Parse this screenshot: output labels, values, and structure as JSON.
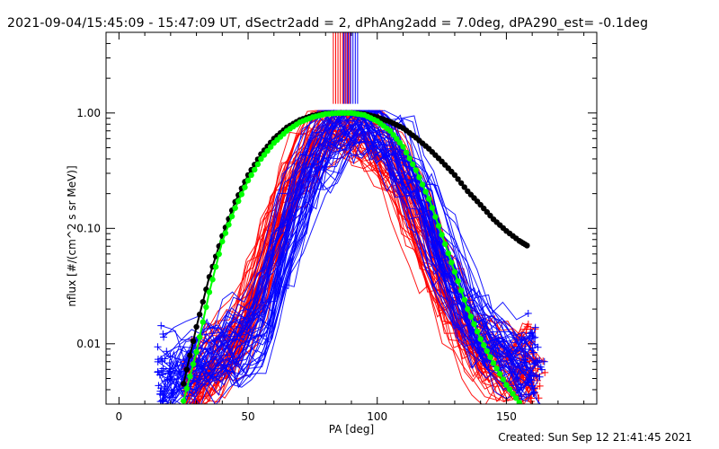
{
  "title": "2021-09-04/15:45:09 - 15:47:09 UT, dSectr2add = 2, dPhAng2add = 7.0deg, dPA290_est= -0.1deg",
  "footer": "Created: Sun Sep 12 21:41:45 2021",
  "chart_data": {
    "type": "line",
    "title": "2021-09-04/15:45:09 - 15:47:09 UT, dSectr2add = 2, dPhAng2add = 7.0deg, dPA290_est= -0.1deg",
    "xlabel": "PA [deg]",
    "ylabel": "nflux [#/(cm^2 s sr MeV)]",
    "xlim": [
      -5,
      185
    ],
    "ylim": [
      0.003,
      5
    ],
    "yscale": "log",
    "x_ticks": [
      0,
      50,
      100,
      150
    ],
    "x_tick_labels": [
      "0",
      "50",
      "100",
      "150"
    ],
    "y_ticks": [
      0.01,
      0.1,
      1.0
    ],
    "y_tick_labels": [
      "0.01",
      "0.10",
      "1.00"
    ],
    "grid": false,
    "colors": {
      "red": "#ff0000",
      "blue": "#0000ff",
      "green": "#00ff00",
      "black": "#000000"
    },
    "series": [
      {
        "color": "#000000",
        "style": "dots",
        "x": [
          25,
          30,
          35,
          40,
          45,
          50,
          55,
          60,
          65,
          70,
          75,
          80,
          85,
          90,
          95,
          100,
          105,
          110,
          115,
          120,
          125,
          130,
          135,
          140,
          145,
          150,
          155,
          158
        ],
        "values": [
          0.0045,
          0.014,
          0.038,
          0.086,
          0.17,
          0.29,
          0.44,
          0.6,
          0.75,
          0.87,
          0.95,
          0.99,
          1.0,
          1.0,
          0.98,
          0.92,
          0.84,
          0.74,
          0.61,
          0.49,
          0.38,
          0.29,
          0.21,
          0.16,
          0.12,
          0.095,
          0.078,
          0.071
        ]
      },
      {
        "color": "#00ff00",
        "style": "dots",
        "x": [
          25,
          30,
          35,
          40,
          45,
          50,
          55,
          60,
          65,
          70,
          75,
          80,
          85,
          90,
          95,
          100,
          105,
          110,
          115,
          120,
          125,
          130,
          135,
          140,
          145,
          150,
          155
        ],
        "values": [
          0.0032,
          0.0085,
          0.028,
          0.077,
          0.15,
          0.26,
          0.4,
          0.55,
          0.7,
          0.83,
          0.92,
          0.98,
          1.0,
          1.0,
          0.96,
          0.85,
          0.7,
          0.51,
          0.32,
          0.18,
          0.088,
          0.042,
          0.02,
          0.011,
          0.0068,
          0.0044,
          0.0031
        ]
      },
      {
        "color": "#ff0000",
        "style": "bundle",
        "count": 50,
        "x": [
          25,
          35,
          45,
          55,
          65,
          75,
          85,
          90,
          95,
          105,
          115,
          125,
          135,
          145,
          155,
          165
        ],
        "values": [
          0.004,
          0.006,
          0.01,
          0.04,
          0.2,
          0.55,
          0.92,
          0.85,
          0.72,
          0.4,
          0.14,
          0.035,
          0.012,
          0.007,
          0.006,
          0.006
        ]
      },
      {
        "color": "#0000ff",
        "style": "bundle",
        "count": 50,
        "x": [
          15,
          25,
          35,
          45,
          55,
          65,
          75,
          85,
          90,
          95,
          105,
          115,
          125,
          135,
          145,
          155,
          165
        ],
        "values": [
          0.005,
          0.006,
          0.008,
          0.01,
          0.015,
          0.1,
          0.42,
          0.8,
          0.95,
          0.9,
          0.55,
          0.24,
          0.06,
          0.018,
          0.01,
          0.007,
          0.006
        ]
      }
    ]
  }
}
